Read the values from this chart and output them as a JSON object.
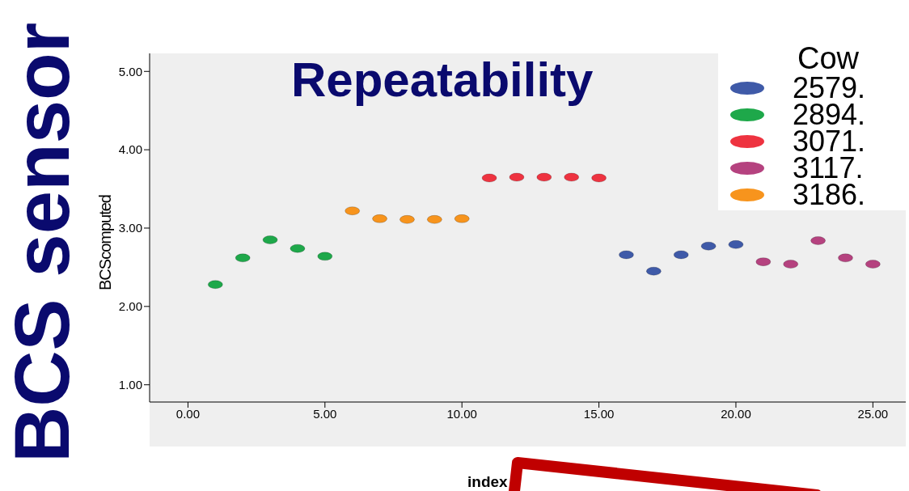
{
  "chart_data": {
    "type": "scatter",
    "title": "Repeatability",
    "xlabel": "index",
    "ylabel": "BCScomputed",
    "legend_title": "Cow",
    "annotations": [
      "BCS sensor"
    ],
    "xlim": [
      -1.4,
      26.2
    ],
    "ylim": [
      0.78,
      5.23
    ],
    "xticks": [
      {
        "value": 0,
        "label": "0.00"
      },
      {
        "value": 5,
        "label": "5.00"
      },
      {
        "value": 10,
        "label": "10.00"
      },
      {
        "value": 15,
        "label": "15.00"
      },
      {
        "value": 20,
        "label": "20.00"
      },
      {
        "value": 25,
        "label": "25.00"
      }
    ],
    "yticks": [
      {
        "value": 1,
        "label": "1.00"
      },
      {
        "value": 2,
        "label": "2.00"
      },
      {
        "value": 3,
        "label": "3.00"
      },
      {
        "value": 4,
        "label": "4.00"
      },
      {
        "value": 5,
        "label": "5.00"
      }
    ],
    "grid": false,
    "legend": "top right",
    "marker": "circle",
    "series": [
      {
        "name": "2579.",
        "color": "#3f5aa8",
        "x": [
          16,
          17,
          18,
          19,
          20
        ],
        "values": [
          2.66,
          2.45,
          2.66,
          2.77,
          2.79
        ]
      },
      {
        "name": "2894.",
        "color": "#1ea84a",
        "x": [
          1,
          2,
          3,
          4,
          5
        ],
        "values": [
          2.28,
          2.62,
          2.85,
          2.74,
          2.64
        ]
      },
      {
        "name": "3071.",
        "color": "#ee3340",
        "x": [
          11,
          12,
          13,
          14,
          15
        ],
        "values": [
          3.64,
          3.65,
          3.65,
          3.65,
          3.64
        ]
      },
      {
        "name": "3117.",
        "color": "#b5427f",
        "x": [
          21,
          22,
          23,
          24,
          25
        ],
        "values": [
          2.57,
          2.54,
          2.84,
          2.62,
          2.54
        ]
      },
      {
        "name": "3186.",
        "color": "#f7941d",
        "x": [
          6,
          7,
          8,
          9,
          10
        ],
        "values": [
          3.22,
          3.12,
          3.11,
          3.11,
          3.12
        ]
      }
    ]
  }
}
